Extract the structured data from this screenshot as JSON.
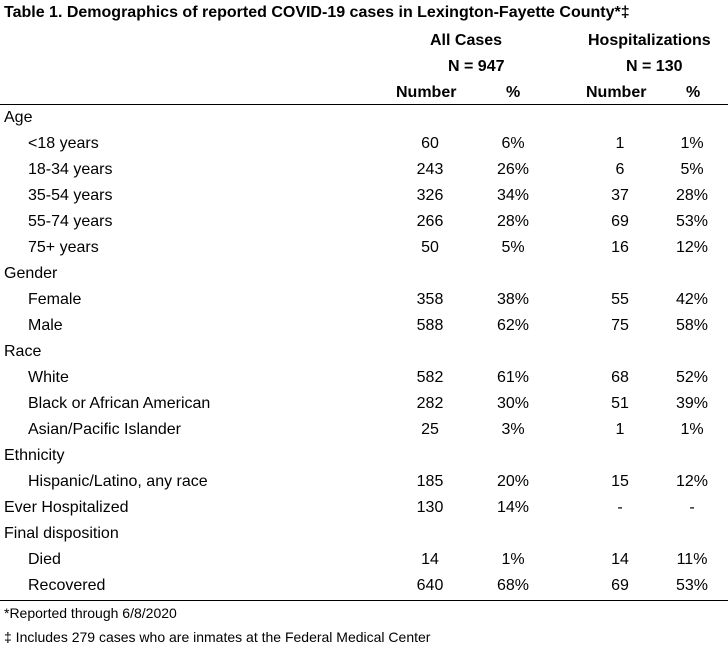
{
  "title": "Table 1. Demographics of reported COVID-19 cases in Lexington-Fayette County*‡",
  "headers": {
    "all_cases": "All Cases",
    "all_cases_n": "N = 947",
    "hosp": "Hospitalizations",
    "hosp_n": "N = 130",
    "number": "Number",
    "percent": "%"
  },
  "rows": [
    {
      "label": "Age",
      "section": true
    },
    {
      "label": "<18 years",
      "n1": "60",
      "p1": "6%",
      "n2": "1",
      "p2": "1%"
    },
    {
      "label": "18-34 years",
      "n1": "243",
      "p1": "26%",
      "n2": "6",
      "p2": "5%"
    },
    {
      "label": "35-54 years",
      "n1": "326",
      "p1": "34%",
      "n2": "37",
      "p2": "28%"
    },
    {
      "label": "55-74 years",
      "n1": "266",
      "p1": "28%",
      "n2": "69",
      "p2": "53%"
    },
    {
      "label": "75+ years",
      "n1": "50",
      "p1": "5%",
      "n2": "16",
      "p2": "12%"
    },
    {
      "label": "Gender",
      "section": true
    },
    {
      "label": "Female",
      "n1": "358",
      "p1": "38%",
      "n2": "55",
      "p2": "42%"
    },
    {
      "label": "Male",
      "n1": "588",
      "p1": "62%",
      "n2": "75",
      "p2": "58%"
    },
    {
      "label": "Race",
      "section": true
    },
    {
      "label": "White",
      "n1": "582",
      "p1": "61%",
      "n2": "68",
      "p2": "52%"
    },
    {
      "label": "Black or African American",
      "n1": "282",
      "p1": "30%",
      "n2": "51",
      "p2": "39%"
    },
    {
      "label": "Asian/Pacific Islander",
      "n1": "25",
      "p1": "3%",
      "n2": "1",
      "p2": "1%"
    },
    {
      "label": "Ethnicity",
      "section": true
    },
    {
      "label": "Hispanic/Latino, any race",
      "n1": "185",
      "p1": "20%",
      "n2": "15",
      "p2": "12%"
    },
    {
      "label": "Ever Hospitalized",
      "section": true,
      "n1": "130",
      "p1": "14%",
      "n2": "-",
      "p2": "-"
    },
    {
      "label": "Final disposition",
      "section": true
    },
    {
      "label": "Died",
      "n1": "14",
      "p1": "1%",
      "n2": "14",
      "p2": "11%"
    },
    {
      "label": "Recovered",
      "n1": "640",
      "p1": "68%",
      "n2": "69",
      "p2": "53%"
    }
  ],
  "footnotes": [
    "*Reported through 6/8/2020",
    "‡ Includes 279 cases who are inmates at the Federal Medical Center"
  ]
}
